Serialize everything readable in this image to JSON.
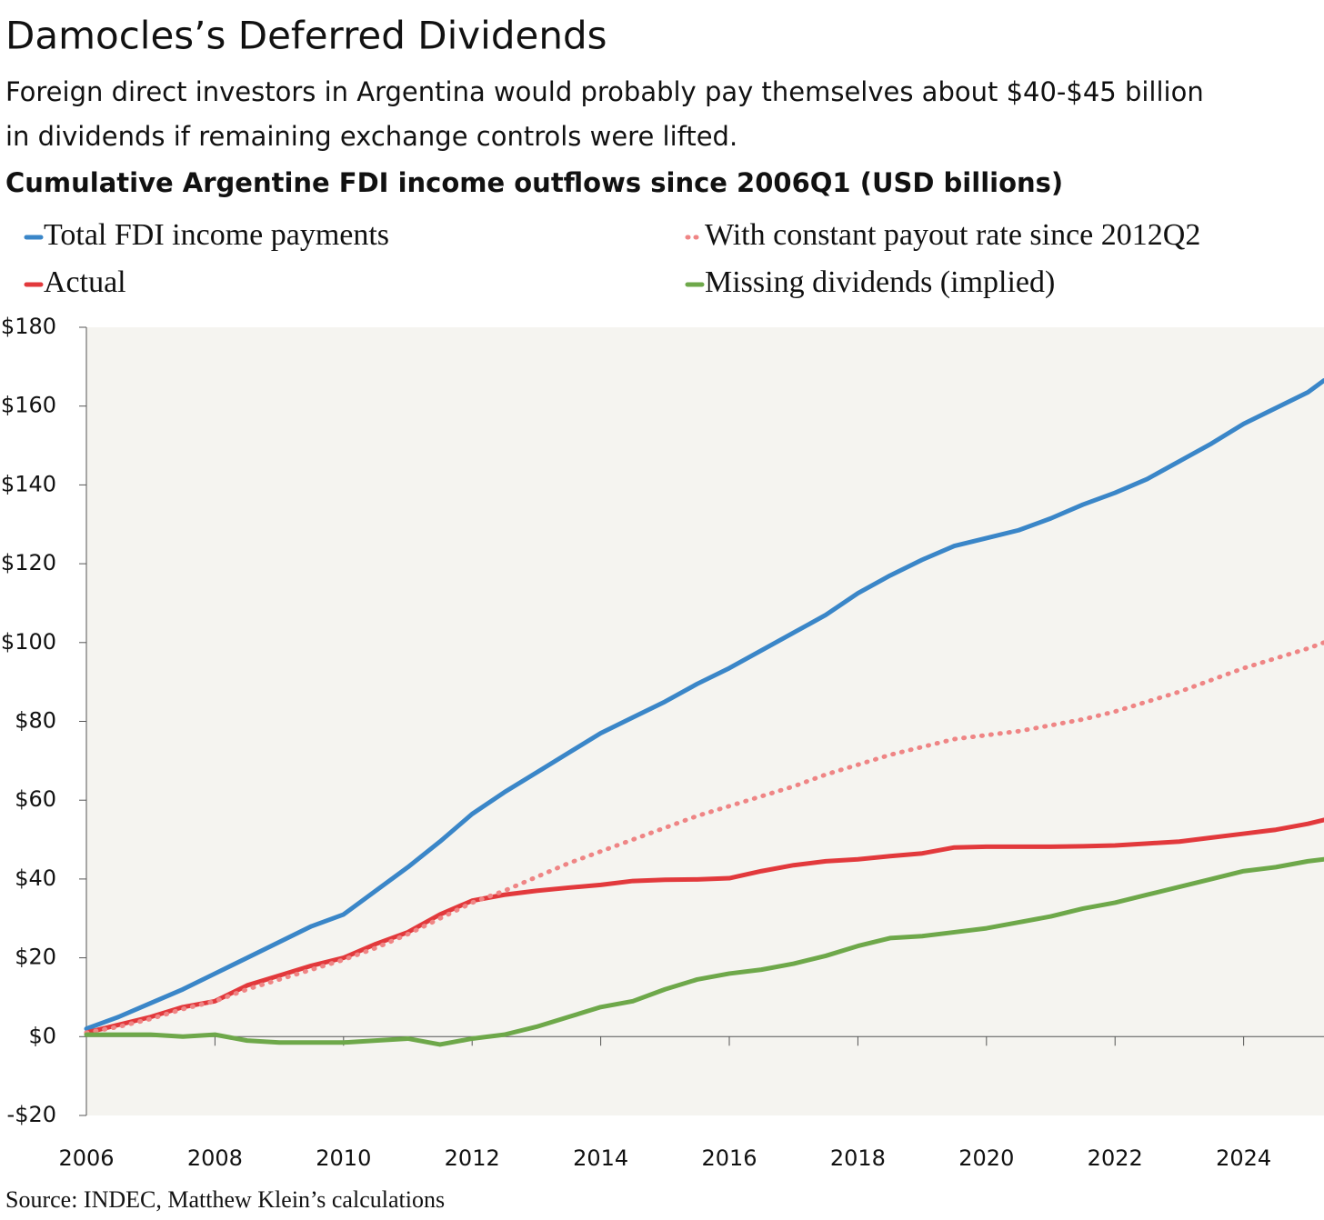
{
  "chart_data": {
    "type": "line",
    "title": "Damocles’s Deferred Dividends",
    "subtitle": [
      "Foreign direct investors in Argentina would probably pay themselves about $40-$45 billion",
      "in dividends if remaining exchange controls were lifted."
    ],
    "chart_title": "Cumulative Argentine FDI income outflows since 2006Q1 (USD billions)",
    "source": "Source: INDEC, Matthew Klein’s calculations",
    "x": [
      2006,
      2006.5,
      2007,
      2007.5,
      2008,
      2008.5,
      2009,
      2009.5,
      2010,
      2010.5,
      2011,
      2011.5,
      2012,
      2012.5,
      2013,
      2013.5,
      2014,
      2014.5,
      2015,
      2015.5,
      2016,
      2016.5,
      2017,
      2017.5,
      2018,
      2018.5,
      2019,
      2019.5,
      2020,
      2020.5,
      2021,
      2021.5,
      2022,
      2022.5,
      2023,
      2023.5,
      2024,
      2024.5,
      2025,
      2025.25
    ],
    "series": [
      {
        "name": "Total FDI income payments",
        "color": "#3a86c8",
        "values": [
          2,
          5,
          8.5,
          12,
          16,
          20,
          24,
          28,
          31,
          37,
          43,
          49.5,
          56.5,
          62,
          67,
          72,
          77,
          81,
          85,
          89.5,
          93.5,
          98,
          102.5,
          107,
          112.5,
          117,
          121,
          124.5,
          126.5,
          128.5,
          131.5,
          135,
          138,
          141.5,
          146,
          150.5,
          155.5,
          159.5,
          163.5,
          166.5
        ]
      },
      {
        "name": "Actual",
        "color": "#e2393c",
        "values": [
          1,
          3,
          5,
          7.5,
          9,
          13,
          15.5,
          18,
          20,
          23.5,
          26.5,
          31,
          34.5,
          36,
          37,
          37.8,
          38.5,
          39.5,
          39.8,
          39.9,
          40.2,
          42,
          43.5,
          44.5,
          45,
          45.8,
          46.5,
          48,
          48.2,
          48.2,
          48.2,
          48.3,
          48.5,
          49,
          49.5,
          50.5,
          51.5,
          52.5,
          54,
          55
        ]
      },
      {
        "name": "With constant payout rate since 2012Q2",
        "color": "#ef8585",
        "dash": "dotted",
        "values": [
          1,
          2.5,
          4.5,
          7,
          9,
          12,
          14.5,
          17,
          19.5,
          22.5,
          26,
          30,
          34,
          37,
          40.5,
          44,
          47,
          50,
          53,
          56,
          58.5,
          61,
          63.5,
          66.5,
          69,
          71.5,
          73.5,
          75.5,
          76.5,
          77.5,
          79,
          80.5,
          82.5,
          85,
          87.5,
          90.5,
          93.5,
          96,
          98.5,
          100
        ]
      },
      {
        "name": "Missing dividends (implied)",
        "color": "#6ea84a",
        "values": [
          0.5,
          0.5,
          0.5,
          0,
          0.5,
          -1,
          -1.5,
          -1.5,
          -1.5,
          -1,
          -0.5,
          -2,
          -0.5,
          0.5,
          2.5,
          5,
          7.5,
          9,
          12,
          14.5,
          16,
          17,
          18.5,
          20.5,
          23,
          25,
          25.5,
          26.5,
          27.5,
          29,
          30.5,
          32.5,
          34,
          36,
          38,
          40,
          42,
          43,
          44.5,
          45
        ]
      }
    ],
    "xlim": [
      2006,
      2025.25
    ],
    "xticks": [
      2006,
      2008,
      2010,
      2012,
      2014,
      2016,
      2018,
      2020,
      2022,
      2024
    ],
    "ylim": [
      -20,
      180
    ],
    "yticks": [
      {
        "value": -20,
        "label": "-$20"
      },
      {
        "value": 0,
        "label": "$0"
      },
      {
        "value": 20,
        "label": "$20"
      },
      {
        "value": 40,
        "label": "$40"
      },
      {
        "value": 60,
        "label": "$60"
      },
      {
        "value": 80,
        "label": "$80"
      },
      {
        "value": 100,
        "label": "$100"
      },
      {
        "value": 120,
        "label": "$120"
      },
      {
        "value": 140,
        "label": "$140"
      },
      {
        "value": 160,
        "label": "$160"
      },
      {
        "value": 180,
        "label": "$180"
      }
    ],
    "plot_background": "#f5f4f0"
  }
}
